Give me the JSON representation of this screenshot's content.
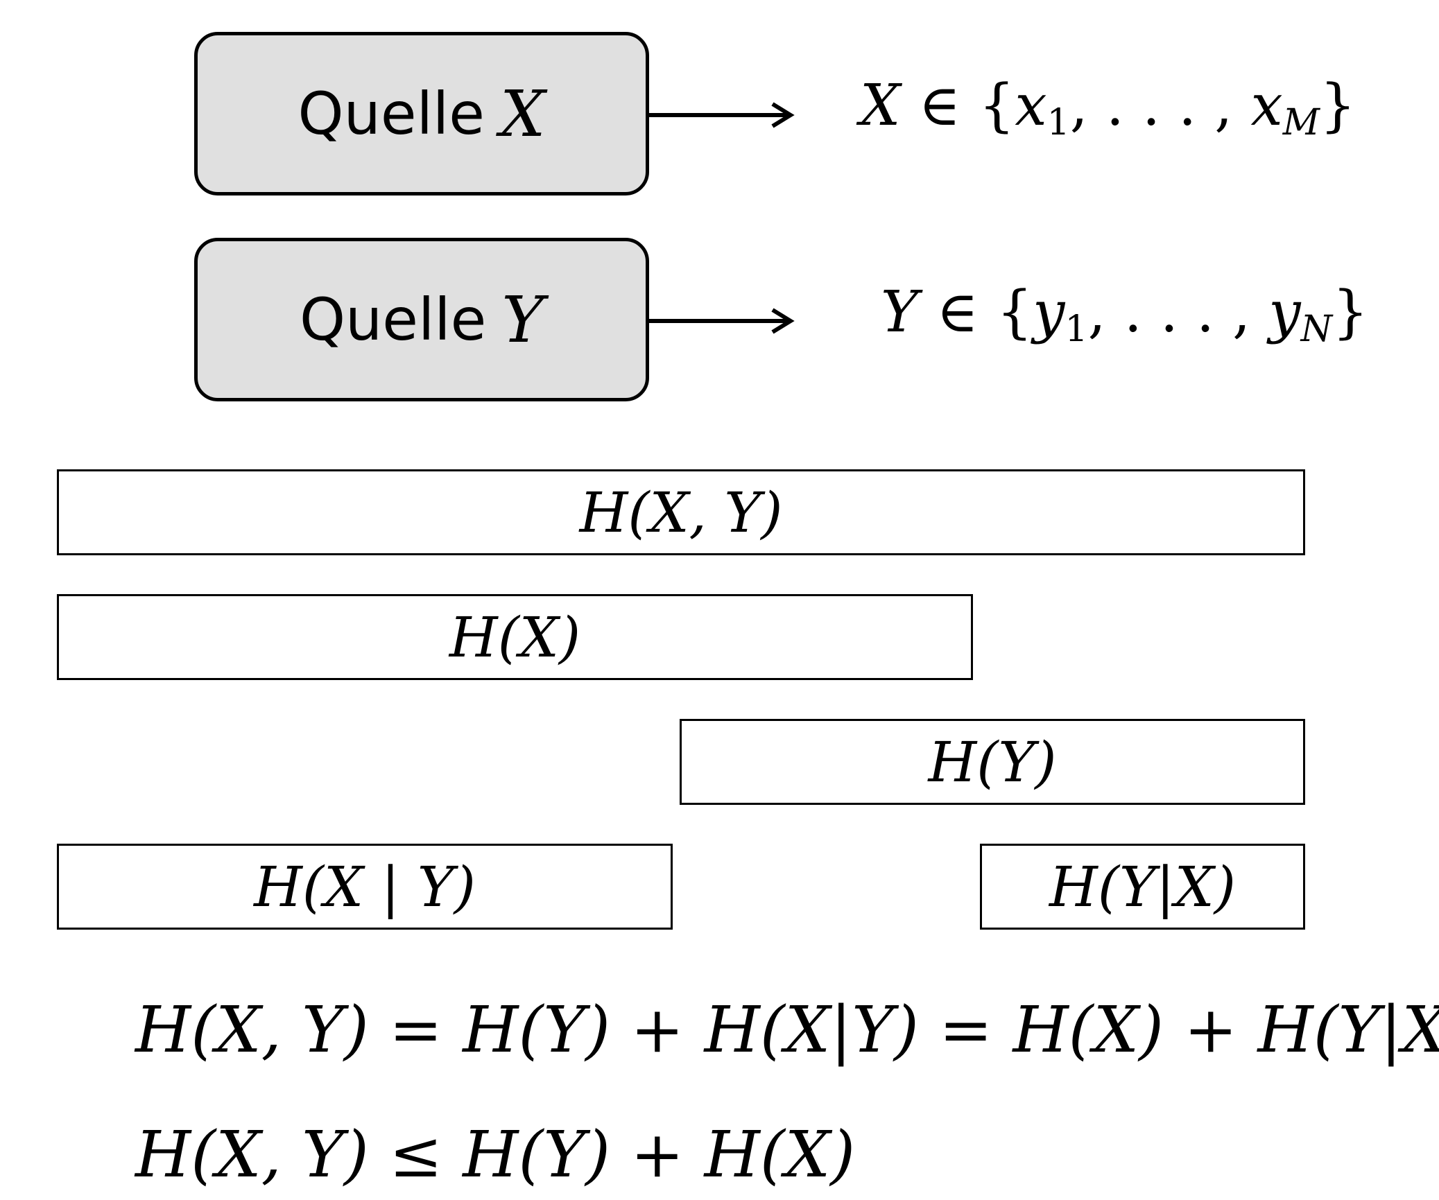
{
  "sources": [
    {
      "word": "Quelle",
      "var": "X"
    },
    {
      "word": "Quelle",
      "var": "Y"
    }
  ],
  "alphabets": [
    {
      "var": "X",
      "elem": "∈",
      "open": "{",
      "first": "x",
      "first_sub": "1",
      "dots": ", . . . ,",
      "last": "x",
      "last_sub": "M",
      "close": "}"
    },
    {
      "var": "Y",
      "elem": "∈",
      "open": "{",
      "first": "y",
      "first_sub": "1",
      "dots": ", . . . ,",
      "last": "y",
      "last_sub": "N",
      "close": "}"
    }
  ],
  "bars": {
    "joint": "H(X, Y)",
    "hx": "H(X)",
    "hy": "H(Y)",
    "hx_given_y": "H(X | Y)",
    "hy_given_x": "H(Y|X)"
  },
  "equations": {
    "chain_rule": "H(X, Y) = H(Y) + H(X|Y) = H(X) + H(Y|X)",
    "inequality": "H(X, Y) ≤ H(Y) + H(X)"
  }
}
